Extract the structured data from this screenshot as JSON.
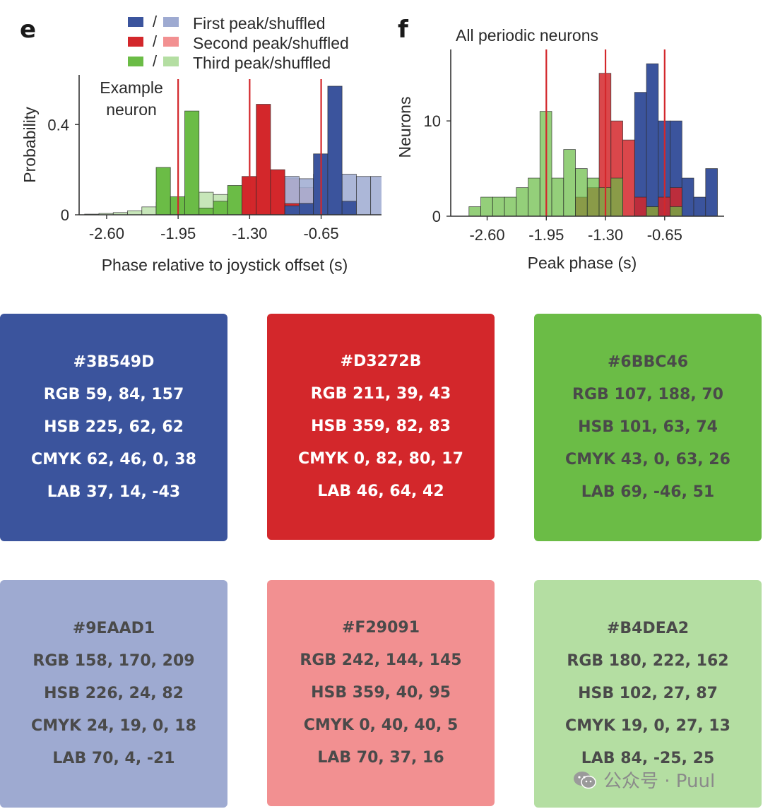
{
  "panels": {
    "e": {
      "letter": "e"
    },
    "f": {
      "letter": "f"
    }
  },
  "chart_data": [
    {
      "type": "bar",
      "panel": "e",
      "title": "",
      "annotation": [
        "Example",
        "neuron"
      ],
      "xlabel": "Phase relative to joystick offset (s)",
      "ylabel": "Probability",
      "xticks": [
        -2.6,
        -1.95,
        -1.3,
        -0.65
      ],
      "xtick_labels": [
        "-2.60",
        "-1.95",
        "-1.30",
        "-0.65"
      ],
      "yticks": [
        0,
        0.4
      ],
      "ytick_labels": [
        "0",
        "0.4"
      ],
      "xlim": [
        -2.85,
        -0.05
      ],
      "ylim": [
        0,
        0.62
      ],
      "bin_width": 0.13,
      "red_lines": [
        -1.95,
        -1.3,
        -0.65
      ],
      "legend": [
        {
          "label": "First peak/shuffled",
          "color": "#3B549D",
          "shuffled_color": "#9EAAD1"
        },
        {
          "label": "Second peak/shuffled",
          "color": "#D3272B",
          "shuffled_color": "#F29091"
        },
        {
          "label": "Third peak/shuffled",
          "color": "#6BBC46",
          "shuffled_color": "#B4DEA2"
        }
      ],
      "legend_separator": "/",
      "series": [
        {
          "name": "Third peak shuffled",
          "color": "#B4DEA2",
          "alpha": 0.75,
          "x": [
            -2.8,
            -2.67,
            -2.54,
            -2.41,
            -2.28,
            -2.15,
            -2.02,
            -1.89,
            -1.76,
            -1.63,
            -1.5,
            -1.37,
            -1.24,
            -1.11,
            -0.98
          ],
          "values": [
            0.003,
            0.006,
            0.01,
            0.018,
            0.035,
            0.055,
            0.07,
            0.085,
            0.1,
            0.09,
            0.075,
            0.06,
            0.04,
            0.02,
            0.008
          ]
        },
        {
          "name": "Second peak shuffled",
          "color": "#F29091",
          "alpha": 0.75,
          "x": [
            -1.76,
            -1.63,
            -1.5,
            -1.37,
            -1.24,
            -1.11,
            -0.98,
            -0.85,
            -0.72,
            -0.59,
            -0.46
          ],
          "values": [
            0.02,
            0.04,
            0.07,
            0.1,
            0.15,
            0.17,
            0.16,
            0.12,
            0.08,
            0.05,
            0.02
          ]
        },
        {
          "name": "First peak shuffled",
          "color": "#9EAAD1",
          "alpha": 0.85,
          "x": [
            -1.37,
            -1.24,
            -1.11,
            -0.98,
            -0.85,
            -0.72,
            -0.59,
            -0.46,
            -0.33,
            -0.2
          ],
          "values": [
            0.04,
            0.1,
            0.15,
            0.17,
            0.16,
            0.18,
            0.15,
            0.18,
            0.17,
            0.17
          ]
        },
        {
          "name": "Third peak",
          "color": "#6BBC46",
          "alpha": 1,
          "x": [
            -2.15,
            -2.02,
            -1.89,
            -1.76,
            -1.63,
            -1.5,
            -1.37
          ],
          "values": [
            0.21,
            0.08,
            0.46,
            0.03,
            0.06,
            0.13,
            0.08
          ]
        },
        {
          "name": "Second peak",
          "color": "#D3272B",
          "alpha": 1,
          "x": [
            -1.37,
            -1.24,
            -1.11,
            -0.98,
            -0.85,
            -0.72
          ],
          "values": [
            0.17,
            0.49,
            0.2,
            0.05,
            0.05,
            0.04
          ]
        },
        {
          "name": "First peak",
          "color": "#3B549D",
          "alpha": 1,
          "x": [
            -0.98,
            -0.85,
            -0.72,
            -0.59,
            -0.46
          ],
          "values": [
            0.04,
            0.05,
            0.27,
            0.57,
            0.06
          ]
        }
      ]
    },
    {
      "type": "bar",
      "panel": "f",
      "title": "All periodic neurons",
      "xlabel": "Peak phase (s)",
      "ylabel": "Neurons",
      "xticks": [
        -2.6,
        -1.95,
        -1.3,
        -0.65
      ],
      "xtick_labels": [
        "-2.60",
        "-1.95",
        "-1.30",
        "-0.65"
      ],
      "yticks": [
        0,
        10
      ],
      "ytick_labels": [
        "0",
        "10"
      ],
      "xlim": [
        -3.0,
        0.05
      ],
      "ylim": [
        0,
        17.5
      ],
      "bin_width": 0.13,
      "red_lines": [
        -1.95,
        -1.3,
        -0.65
      ],
      "series": [
        {
          "name": "First peak",
          "color": "#3B549D",
          "alpha": 1,
          "x": [
            -0.98,
            -0.85,
            -0.72,
            -0.59,
            -0.46,
            -0.33,
            -0.2
          ],
          "values": [
            13,
            16,
            10,
            10,
            4,
            2,
            5
          ]
        },
        {
          "name": "Second peak",
          "color": "#D3272B",
          "alpha": 0.85,
          "x": [
            -1.63,
            -1.5,
            -1.37,
            -1.24,
            -1.11,
            -0.98,
            -0.85,
            -0.72,
            -0.59
          ],
          "values": [
            2,
            3,
            15,
            10,
            8,
            2,
            1,
            2,
            3
          ]
        },
        {
          "name": "Third peak",
          "color": "#6BBC46",
          "alpha": 0.72,
          "x": [
            -2.8,
            -2.67,
            -2.54,
            -2.41,
            -2.28,
            -2.15,
            -2.02,
            -1.89,
            -1.76,
            -1.63,
            -1.5,
            -1.37,
            -1.24,
            -0.85,
            -0.59
          ],
          "values": [
            1,
            2,
            2,
            2,
            3,
            4,
            11,
            4,
            7,
            5,
            4,
            3,
            4,
            1,
            1
          ]
        }
      ]
    }
  ],
  "swatches": [
    {
      "hex": "#3B549D",
      "rgb": "RGB 59, 84, 157",
      "hsb": "HSB 225, 62, 62",
      "cmyk": "CMYK 62, 46, 0, 38",
      "lab": "LAB 37, 14, -43"
    },
    {
      "hex": "#D3272B",
      "rgb": "RGB 211, 39, 43",
      "hsb": "HSB 359, 82, 83",
      "cmyk": "CMYK 0, 82, 80, 17",
      "lab": "LAB 46, 64, 42"
    },
    {
      "hex": "#6BBC46",
      "rgb": "RGB 107, 188, 70",
      "hsb": "HSB 101, 63, 74",
      "cmyk": "CMYK 43, 0, 63, 26",
      "lab": "LAB 69, -46, 51"
    },
    {
      "hex": "#9EAAD1",
      "rgb": "RGB 158, 170, 209",
      "hsb": "HSB 226, 24, 82",
      "cmyk": "CMYK 24, 19, 0, 18",
      "lab": "LAB 70, 4, -21"
    },
    {
      "hex": "#F29091",
      "rgb": "RGB 242, 144, 145",
      "hsb": "HSB 359, 40, 95",
      "cmyk": "CMYK 0, 40, 40, 5",
      "lab": "LAB 70, 37, 16"
    },
    {
      "hex": "#B4DEA2",
      "rgb": "RGB 180, 222, 162",
      "hsb": "HSB 102, 27, 87",
      "cmyk": "CMYK 19, 0, 27, 13",
      "lab": "LAB 84, -25, 25"
    }
  ],
  "watermark": {
    "text": "公众号 · Puul",
    "icon": "wechat-icon"
  }
}
